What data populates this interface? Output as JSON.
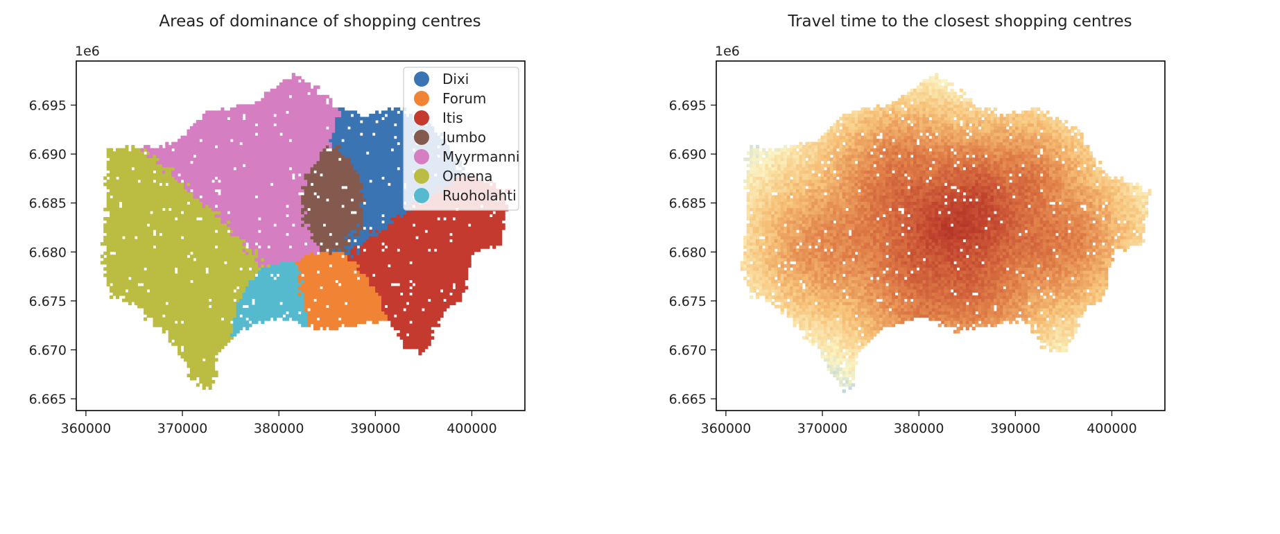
{
  "chart_data": [
    {
      "type": "scatter",
      "title": "Areas of dominance of shopping centres",
      "offset_label": "1e6",
      "xlim": [
        359000,
        405500
      ],
      "ylim": [
        6663800,
        6699500
      ],
      "xticks": [
        360000,
        370000,
        380000,
        390000,
        400000
      ],
      "xtick_labels": [
        "360000",
        "370000",
        "380000",
        "390000",
        "400000"
      ],
      "yticks": [
        6665000,
        6670000,
        6675000,
        6680000,
        6685000,
        6690000,
        6695000
      ],
      "ytick_labels": [
        "6.665",
        "6.670",
        "6.675",
        "6.680",
        "6.685",
        "6.690",
        "6.695"
      ],
      "legend_position": "upper right",
      "grid": false,
      "categories": [
        {
          "name": "Dixi",
          "color": "#3a74b3"
        },
        {
          "name": "Forum",
          "color": "#f08434"
        },
        {
          "name": "Itis",
          "color": "#c53a2f"
        },
        {
          "name": "Jumbo",
          "color": "#845a4f"
        },
        {
          "name": "Myyrmanni",
          "color": "#d57ec2"
        },
        {
          "name": "Omena",
          "color": "#bbbc42"
        },
        {
          "name": "Ruoholahti",
          "color": "#56bace"
        }
      ]
    },
    {
      "type": "heatmap",
      "title": "Travel time to the closest shopping centres",
      "offset_label": "1e6",
      "xlim": [
        359000,
        405500
      ],
      "ylim": [
        6663800,
        6699500
      ],
      "xticks": [
        360000,
        370000,
        380000,
        390000,
        400000
      ],
      "xtick_labels": [
        "360000",
        "370000",
        "380000",
        "390000",
        "400000"
      ],
      "yticks": [
        6665000,
        6670000,
        6675000,
        6680000,
        6685000,
        6690000,
        6695000
      ],
      "ytick_labels": [
        "6.665",
        "6.670",
        "6.675",
        "6.680",
        "6.685",
        "6.690",
        "6.695"
      ],
      "grid": false,
      "colormap": [
        "#2c3a92",
        "#a9cfe3",
        "#fbf4c4",
        "#f7c37a",
        "#e07f48",
        "#c2452f",
        "#a5261f"
      ]
    }
  ]
}
